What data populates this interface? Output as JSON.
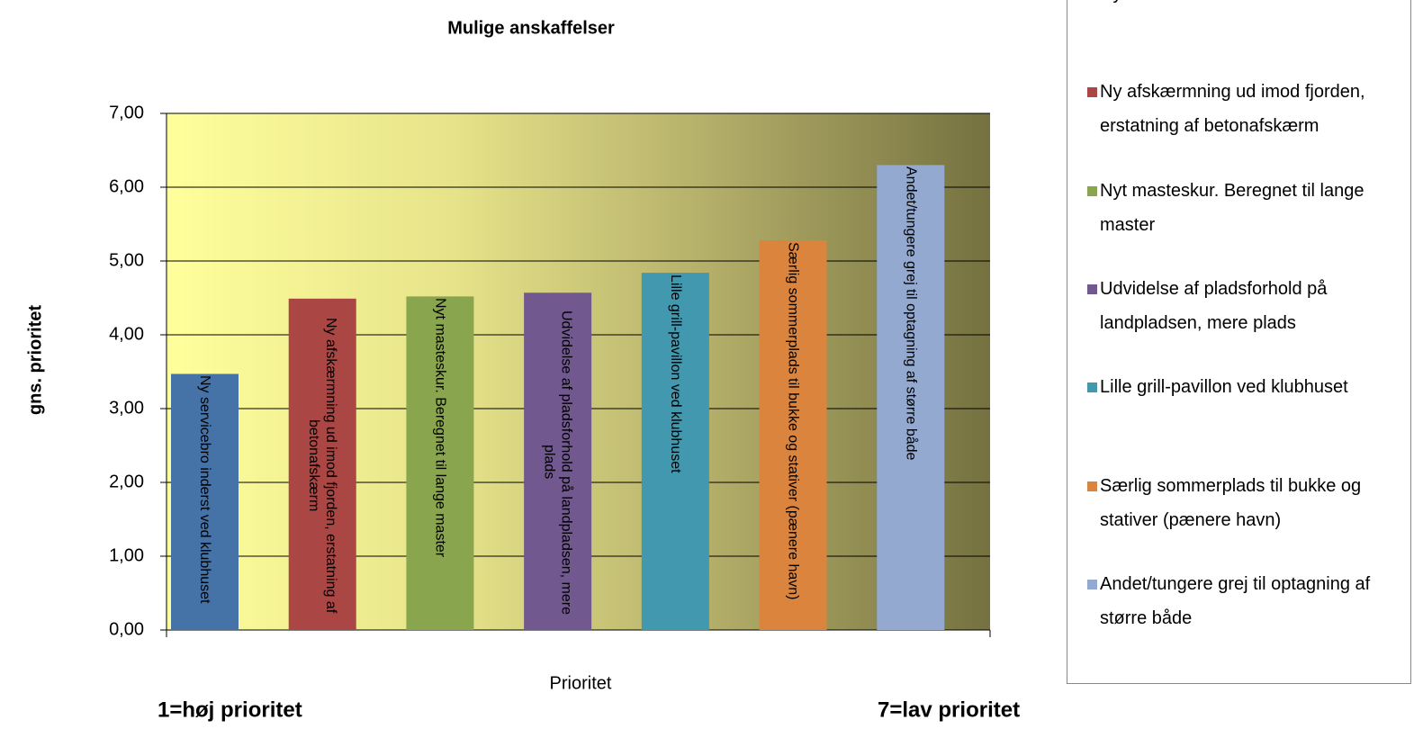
{
  "chart_data": {
    "type": "bar",
    "title": "Mulige anskaffelser",
    "xlabel": "Prioritet",
    "ylabel": "gns. prioritet",
    "annotations": [
      "1=høj prioritet",
      "7=lav prioritet"
    ],
    "ylim": [
      0,
      7
    ],
    "yticks": [
      {
        "value": 0,
        "label": "0,00"
      },
      {
        "value": 1,
        "label": "1,00"
      },
      {
        "value": 2,
        "label": "2,00"
      },
      {
        "value": 3,
        "label": "3,00"
      },
      {
        "value": 4,
        "label": "4,00"
      },
      {
        "value": 5,
        "label": "5,00"
      },
      {
        "value": 6,
        "label": "6,00"
      },
      {
        "value": 7,
        "label": "7,00"
      }
    ],
    "grid": true,
    "series": [
      {
        "name": "Ny servicebro inderst ved klubhuset",
        "color": "#4572a7",
        "values": [
          3.47
        ]
      },
      {
        "name": "Ny afskærmning ud imod fjorden, erstatning af betonafskærm",
        "color": "#aa4643",
        "values": [
          4.49
        ]
      },
      {
        "name": "Nyt masteskur. Beregnet til lange master",
        "color": "#89a54e",
        "values": [
          4.52
        ]
      },
      {
        "name": "Udvidelse af pladsforhold på landpladsen, mere plads",
        "color": "#71588f",
        "values": [
          4.57
        ]
      },
      {
        "name": "Lille grill-pavillon ved klubhuset",
        "color": "#4198af",
        "values": [
          4.84
        ]
      },
      {
        "name": "Særlig sommerplads til bukke og stativer (pænere havn)",
        "color": "#db843d",
        "values": [
          5.28
        ]
      },
      {
        "name": "Andet/tungere grej til optagning af større både",
        "color": "#93a9cf",
        "values": [
          6.3
        ]
      }
    ]
  }
}
